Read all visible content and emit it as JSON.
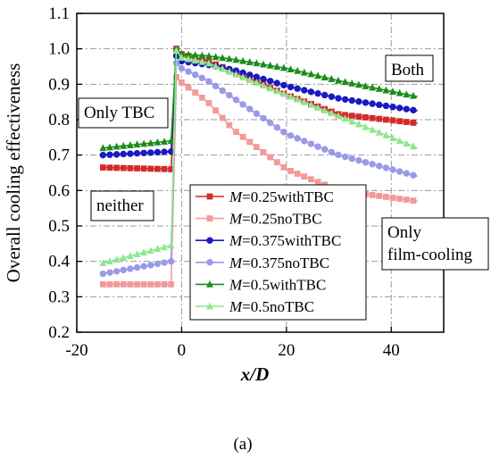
{
  "chart_data": {
    "type": "line",
    "xlabel": "x/D",
    "ylabel": "Overall cooling effectiveness",
    "xlim": [
      -20,
      50
    ],
    "ylim": [
      0.2,
      1.1
    ],
    "xticks": [
      "-20",
      "0",
      "20",
      "40"
    ],
    "xtick_values": [
      -20,
      0,
      20,
      40
    ],
    "yticks": [
      "0.2",
      "0.3",
      "0.4",
      "0.5",
      "0.6",
      "0.7",
      "0.8",
      "0.9",
      "1.0",
      "1.1"
    ],
    "ytick_values": [
      0.2,
      0.3,
      0.4,
      0.5,
      0.6,
      0.7,
      0.8,
      0.9,
      1.0,
      1.1
    ],
    "grid": true,
    "legend_position": "center",
    "caption": "(a)",
    "annotations": [
      "Only TBC",
      "neither",
      "Both",
      "Only",
      "film-cooling"
    ],
    "series": [
      {
        "name": "M=0.25withTBC",
        "name_italic": "M",
        "name_rest": "=0.25withTBC",
        "color": "#d42a2a",
        "marker": "square",
        "x": [
          -15,
          -2,
          -1,
          0,
          5,
          10,
          20,
          30,
          45
        ],
        "y": [
          0.665,
          0.66,
          1.0,
          0.985,
          0.965,
          0.935,
          0.87,
          0.815,
          0.79
        ]
      },
      {
        "name": "M=0.25noTBC",
        "name_italic": "M",
        "name_rest": "=0.25noTBC",
        "color": "#f29a9a",
        "marker": "square",
        "x": [
          -15,
          -2,
          -1,
          0,
          5,
          10,
          20,
          30,
          45
        ],
        "y": [
          0.335,
          0.335,
          0.92,
          0.905,
          0.85,
          0.77,
          0.66,
          0.6,
          0.57
        ]
      },
      {
        "name": "M=0.375withTBC",
        "name_italic": "M",
        "name_rest": "=0.375withTBC",
        "color": "#1a1ac0",
        "marker": "circle",
        "x": [
          -15,
          -2,
          -1,
          0,
          5,
          10,
          20,
          30,
          45
        ],
        "y": [
          0.7,
          0.71,
          0.98,
          0.965,
          0.955,
          0.94,
          0.895,
          0.86,
          0.825
        ]
      },
      {
        "name": "M=0.375noTBC",
        "name_italic": "M",
        "name_rest": "=0.375noTBC",
        "color": "#9a9ae8",
        "marker": "circle",
        "x": [
          -15,
          -2,
          -1,
          0,
          5,
          10,
          20,
          30,
          45
        ],
        "y": [
          0.365,
          0.4,
          0.96,
          0.945,
          0.91,
          0.86,
          0.76,
          0.7,
          0.64
        ]
      },
      {
        "name": "M=0.5withTBC",
        "name_italic": "M",
        "name_rest": "=0.5withTBC",
        "color": "#1a8c1a",
        "marker": "triangle",
        "x": [
          -15,
          -2,
          -1,
          0,
          5,
          10,
          20,
          30,
          45
        ],
        "y": [
          0.72,
          0.74,
          1.0,
          0.985,
          0.98,
          0.97,
          0.945,
          0.91,
          0.865
        ]
      },
      {
        "name": "M=0.5noTBC",
        "name_italic": "M",
        "name_rest": "=0.5noTBC",
        "color": "#8ee88e",
        "marker": "triangle",
        "x": [
          -15,
          -2,
          -1,
          0,
          5,
          10,
          20,
          30,
          45
        ],
        "y": [
          0.395,
          0.445,
          0.995,
          0.975,
          0.96,
          0.93,
          0.87,
          0.81,
          0.72
        ]
      }
    ]
  }
}
